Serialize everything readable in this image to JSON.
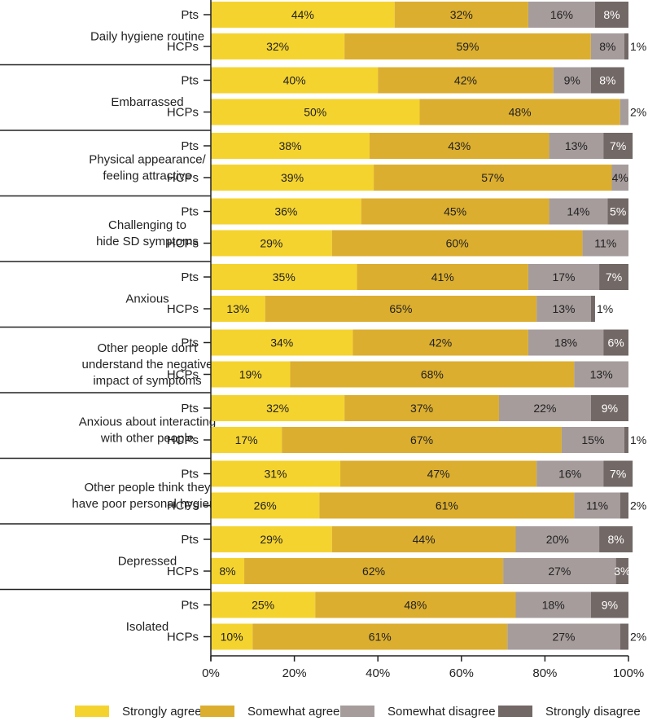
{
  "chart_data": {
    "type": "bar",
    "orientation": "horizontal",
    "stacked": true,
    "xlim": [
      0,
      100
    ],
    "xticks": [
      "0%",
      "20%",
      "40%",
      "60%",
      "80%",
      "100%"
    ],
    "series": [
      {
        "name": "Strongly agree",
        "color": "#f5d32f"
      },
      {
        "name": "Somewhat agree",
        "color": "#dcae2f"
      },
      {
        "name": "Somewhat disagree",
        "color": "#a69c9c"
      },
      {
        "name": "Strongly disagree",
        "color": "#726866"
      }
    ],
    "groups": [
      {
        "label": [
          "Daily hygiene routine"
        ],
        "rows": [
          {
            "name": "Pts",
            "values": [
              44,
              32,
              16,
              8
            ]
          },
          {
            "name": "HCPs",
            "values": [
              32,
              59,
              8,
              1
            ]
          }
        ]
      },
      {
        "label": [
          "Embarrassed"
        ],
        "rows": [
          {
            "name": "Pts",
            "values": [
              40,
              42,
              9,
              8
            ]
          },
          {
            "name": "HCPs",
            "values": [
              50,
              48,
              2,
              0
            ]
          }
        ]
      },
      {
        "label": [
          "Physical appearance/",
          "feeling attractive"
        ],
        "rows": [
          {
            "name": "Pts",
            "values": [
              38,
              43,
              13,
              7
            ]
          },
          {
            "name": "HCPs",
            "values": [
              39,
              57,
              4,
              0
            ]
          }
        ]
      },
      {
        "label": [
          "Challenging to",
          "hide SD symptoms"
        ],
        "rows": [
          {
            "name": "Pts",
            "values": [
              36,
              45,
              14,
              5
            ]
          },
          {
            "name": "HCPs",
            "values": [
              29,
              60,
              11,
              0
            ]
          }
        ]
      },
      {
        "label": [
          "Anxious"
        ],
        "rows": [
          {
            "name": "Pts",
            "values": [
              35,
              41,
              17,
              7
            ]
          },
          {
            "name": "HCPs",
            "values": [
              13,
              65,
              13,
              1
            ]
          }
        ]
      },
      {
        "label": [
          "Other people don't",
          "understand the negative",
          "impact of symptoms"
        ],
        "rows": [
          {
            "name": "Pts",
            "values": [
              34,
              42,
              18,
              6
            ]
          },
          {
            "name": "HCPs",
            "values": [
              19,
              68,
              13,
              0
            ]
          }
        ]
      },
      {
        "label": [
          "Anxious about interacting",
          "with other people"
        ],
        "rows": [
          {
            "name": "Pts",
            "values": [
              32,
              37,
              22,
              9
            ]
          },
          {
            "name": "HCPs",
            "values": [
              17,
              67,
              15,
              1
            ]
          }
        ]
      },
      {
        "label": [
          "Other people think they",
          "have poor personal hygiene"
        ],
        "rows": [
          {
            "name": "Pts",
            "values": [
              31,
              47,
              16,
              7
            ]
          },
          {
            "name": "HCPs",
            "values": [
              26,
              61,
              11,
              2
            ]
          }
        ]
      },
      {
        "label": [
          "Depressed"
        ],
        "rows": [
          {
            "name": "Pts",
            "values": [
              29,
              44,
              20,
              8
            ]
          },
          {
            "name": "HCPs",
            "values": [
              8,
              62,
              27,
              3
            ]
          }
        ]
      },
      {
        "label": [
          "Isolated"
        ],
        "rows": [
          {
            "name": "Pts",
            "values": [
              25,
              48,
              18,
              9
            ]
          },
          {
            "name": "HCPs",
            "values": [
              10,
              61,
              27,
              2
            ]
          }
        ]
      }
    ]
  }
}
